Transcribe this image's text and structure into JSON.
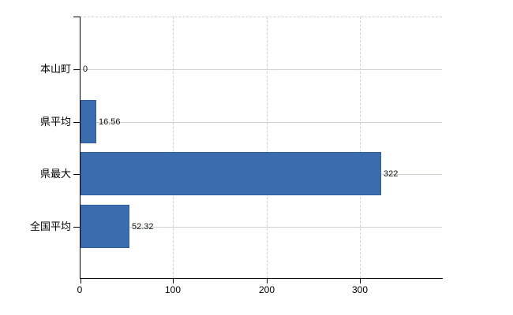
{
  "chart_data": {
    "type": "bar",
    "orientation": "horizontal",
    "title": "",
    "xlabel": "",
    "ylabel": "",
    "categories": [
      "本山町",
      "県平均",
      "県最大",
      "全国平均"
    ],
    "values": [
      0,
      16.56,
      322,
      52.32
    ],
    "value_labels": [
      "0",
      "16.56",
      "322",
      "52.32"
    ],
    "x_ticks": [
      0,
      100,
      200,
      300
    ],
    "x_tick_labels": [
      "0",
      "100",
      "200",
      "300"
    ],
    "xlim": [
      0,
      388
    ],
    "grid": true,
    "legend": false,
    "colors": {
      "bar_fill": "#3b6cae",
      "bar_border": "#315f9d",
      "axis": "#000000",
      "gridline_horizontal": "#ccd5cc",
      "gridline_vertical": "#d6cbd6",
      "gridline_top_dashed": "#d2d2d2",
      "text": "#000000",
      "background": "#ffffff"
    }
  }
}
